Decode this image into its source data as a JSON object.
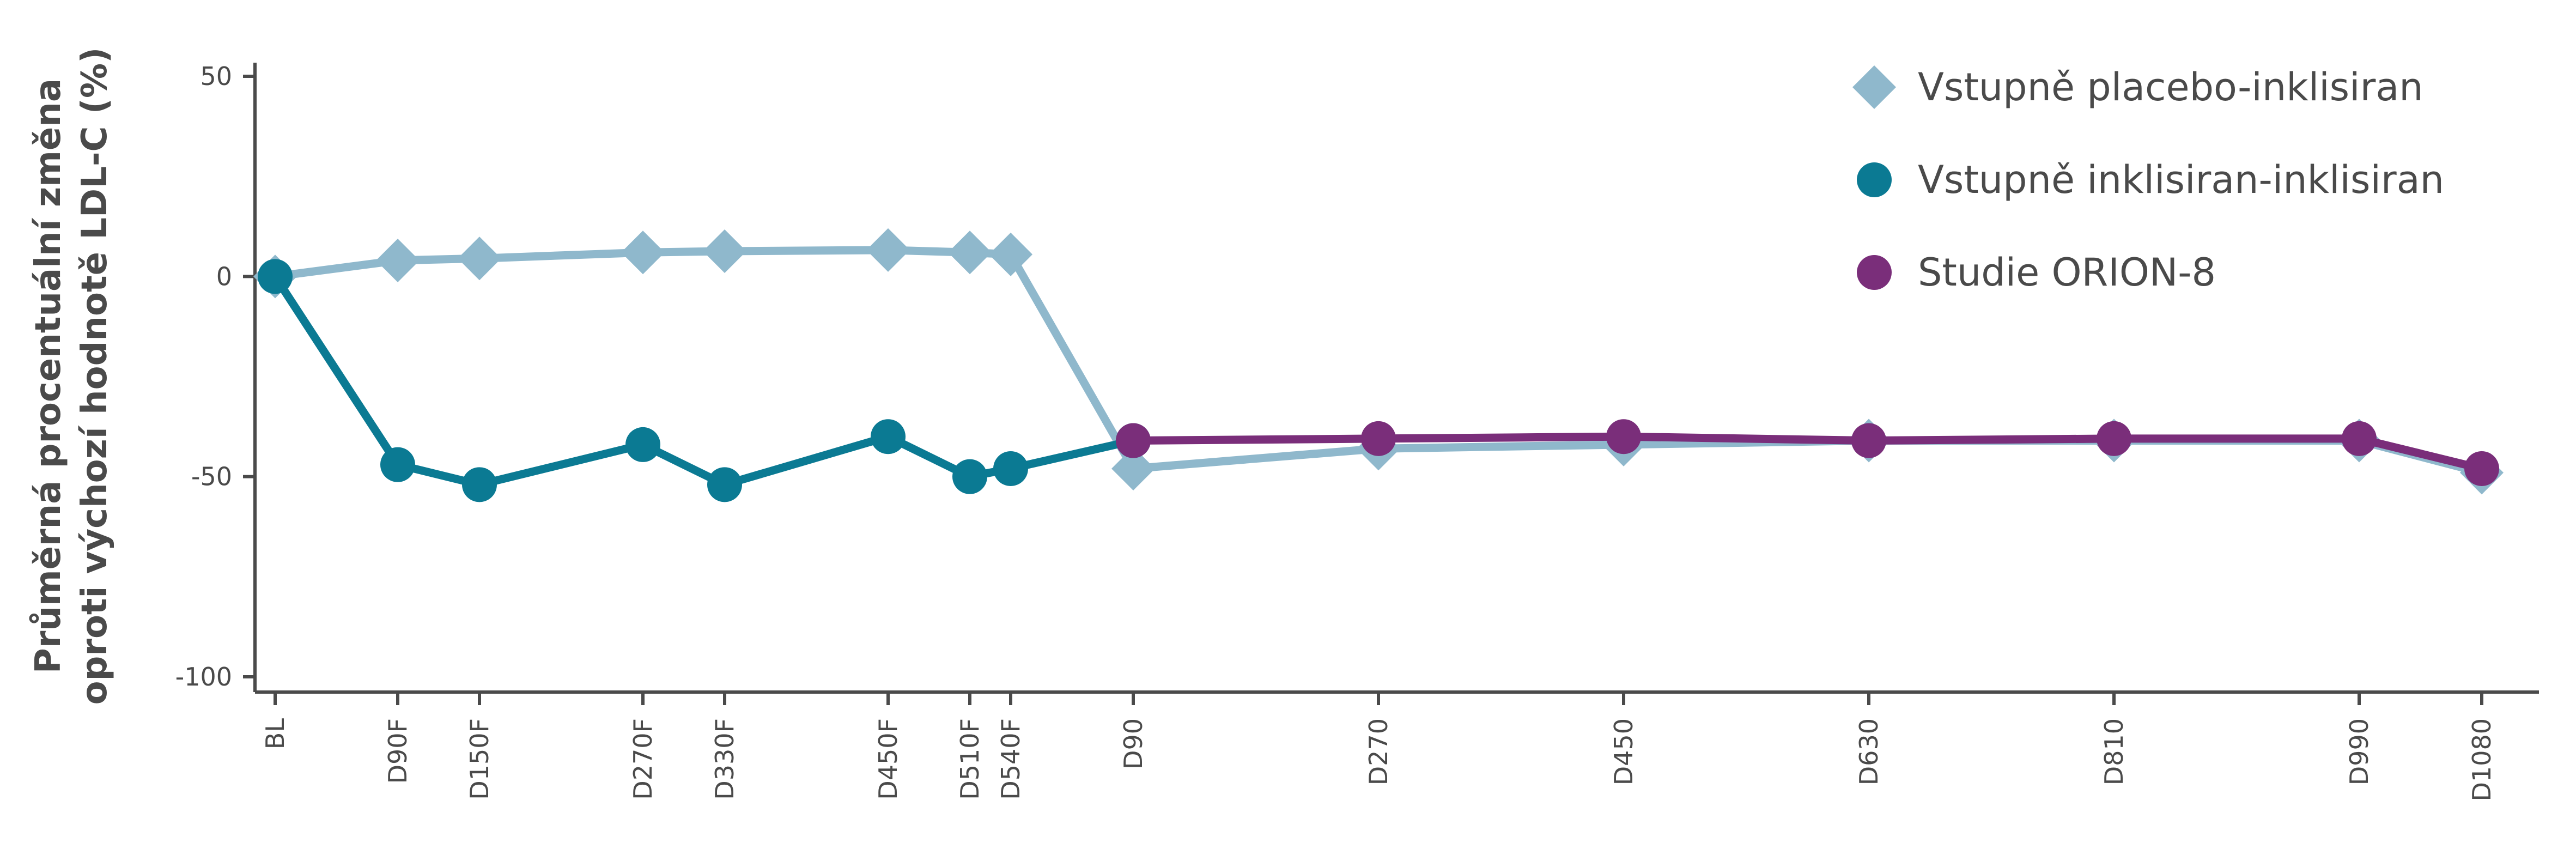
{
  "chart_data": {
    "type": "line",
    "title": "",
    "xlabel": "",
    "ylabel_line1": "Průměrná procentuální změna",
    "ylabel_line2": "oproti výchozí hodnotě LDL-C (%)",
    "ylim": [
      -100,
      50
    ],
    "yticks": [
      50,
      0,
      -50,
      -100
    ],
    "ytick_labels": [
      "50",
      "0",
      "-50",
      "-100"
    ],
    "categories": [
      "BL",
      "D90F",
      "D150F",
      "D270F",
      "D330F",
      "D450F",
      "D510F",
      "D540F",
      "D90",
      "D270",
      "D450",
      "D630",
      "D810",
      "D990",
      "D1080"
    ],
    "category_days": [
      0,
      90,
      150,
      270,
      330,
      450,
      510,
      540,
      630,
      810,
      990,
      1170,
      1350,
      1530,
      1620
    ],
    "legend_position": "top-right",
    "grid": false,
    "series": [
      {
        "name": "Vstupně placebo-inklisiran",
        "marker": "diamond",
        "color": "#8fb8cc",
        "values": [
          0,
          4,
          4.5,
          6,
          6.3,
          6.6,
          6,
          5.5,
          -48,
          -43,
          -42,
          -41,
          -41,
          -41,
          -49
        ]
      },
      {
        "name": "Vstupně inklisiran-inklisiran",
        "marker": "circle",
        "color": "#0b7a93",
        "values": [
          0,
          -47,
          -52,
          -42,
          -52,
          -40,
          -50,
          -48,
          -41,
          null,
          null,
          null,
          null,
          null,
          null
        ]
      },
      {
        "name": "Studie ORION-8",
        "marker": "circle",
        "color": "#7a2e7a",
        "values": [
          null,
          null,
          null,
          null,
          null,
          null,
          null,
          null,
          -41,
          -40.5,
          -40,
          -41,
          -40.5,
          -40.5,
          -48
        ]
      }
    ]
  }
}
